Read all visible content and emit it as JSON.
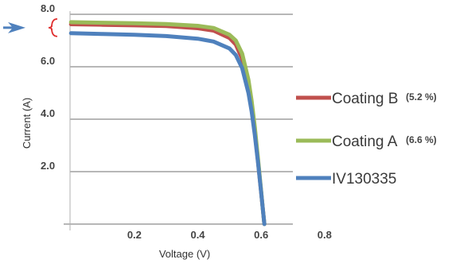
{
  "chart_data": {
    "type": "line",
    "xlabel": "Voltage (V)",
    "ylabel": "Current (A)",
    "xlim": [
      -0.003,
      0.7
    ],
    "ylim": [
      0,
      8.0
    ],
    "x_ticks": [
      {
        "value": 0.2,
        "label": "0.2"
      },
      {
        "value": 0.4,
        "label": "0.4"
      },
      {
        "value": 0.6,
        "label": "0.6"
      },
      {
        "value": 0.8,
        "label": "0.8"
      }
    ],
    "y_ticks": [
      {
        "value": 2.0,
        "label": "2.0"
      },
      {
        "value": 4.0,
        "label": "4.0"
      },
      {
        "value": 6.0,
        "label": "6.0"
      },
      {
        "value": 8.0,
        "label": "8.0"
      }
    ],
    "gridlines": "horizontal",
    "legend_position": "right",
    "series": [
      {
        "name": "Coating B",
        "note": "(5.2  %)",
        "color": "#c0504d",
        "x": [
          0,
          0.1,
          0.2,
          0.3,
          0.4,
          0.45,
          0.5,
          0.52,
          0.54,
          0.56,
          0.57,
          0.58,
          0.59,
          0.6,
          0.605,
          0.61
        ],
        "y": [
          7.62,
          7.6,
          7.58,
          7.55,
          7.47,
          7.38,
          7.1,
          6.85,
          6.3,
          5.3,
          4.5,
          3.5,
          2.4,
          1.2,
          0.6,
          0
        ]
      },
      {
        "name": "Coating A",
        "note": "(6.6 %)",
        "color": "#9bbb59",
        "x": [
          0,
          0.1,
          0.2,
          0.3,
          0.4,
          0.45,
          0.5,
          0.52,
          0.54,
          0.56,
          0.57,
          0.58,
          0.59,
          0.6,
          0.605,
          0.61
        ],
        "y": [
          7.7,
          7.68,
          7.66,
          7.63,
          7.56,
          7.48,
          7.22,
          7.0,
          6.5,
          5.5,
          4.7,
          3.7,
          2.5,
          1.25,
          0.6,
          0
        ]
      },
      {
        "name": "IV130335",
        "note": "",
        "color": "#4f81bd",
        "x": [
          0,
          0.1,
          0.2,
          0.3,
          0.4,
          0.45,
          0.5,
          0.52,
          0.54,
          0.56,
          0.57,
          0.58,
          0.59,
          0.6,
          0.605,
          0.61
        ],
        "y": [
          7.28,
          7.25,
          7.22,
          7.17,
          7.07,
          6.96,
          6.7,
          6.45,
          5.95,
          5.0,
          4.3,
          3.4,
          2.35,
          1.2,
          0.6,
          0
        ]
      }
    ],
    "annotation": {
      "arrow_color": "#4f81bd",
      "brace_color": "#e03030",
      "brace_range": [
        7.28,
        7.7
      ]
    }
  }
}
